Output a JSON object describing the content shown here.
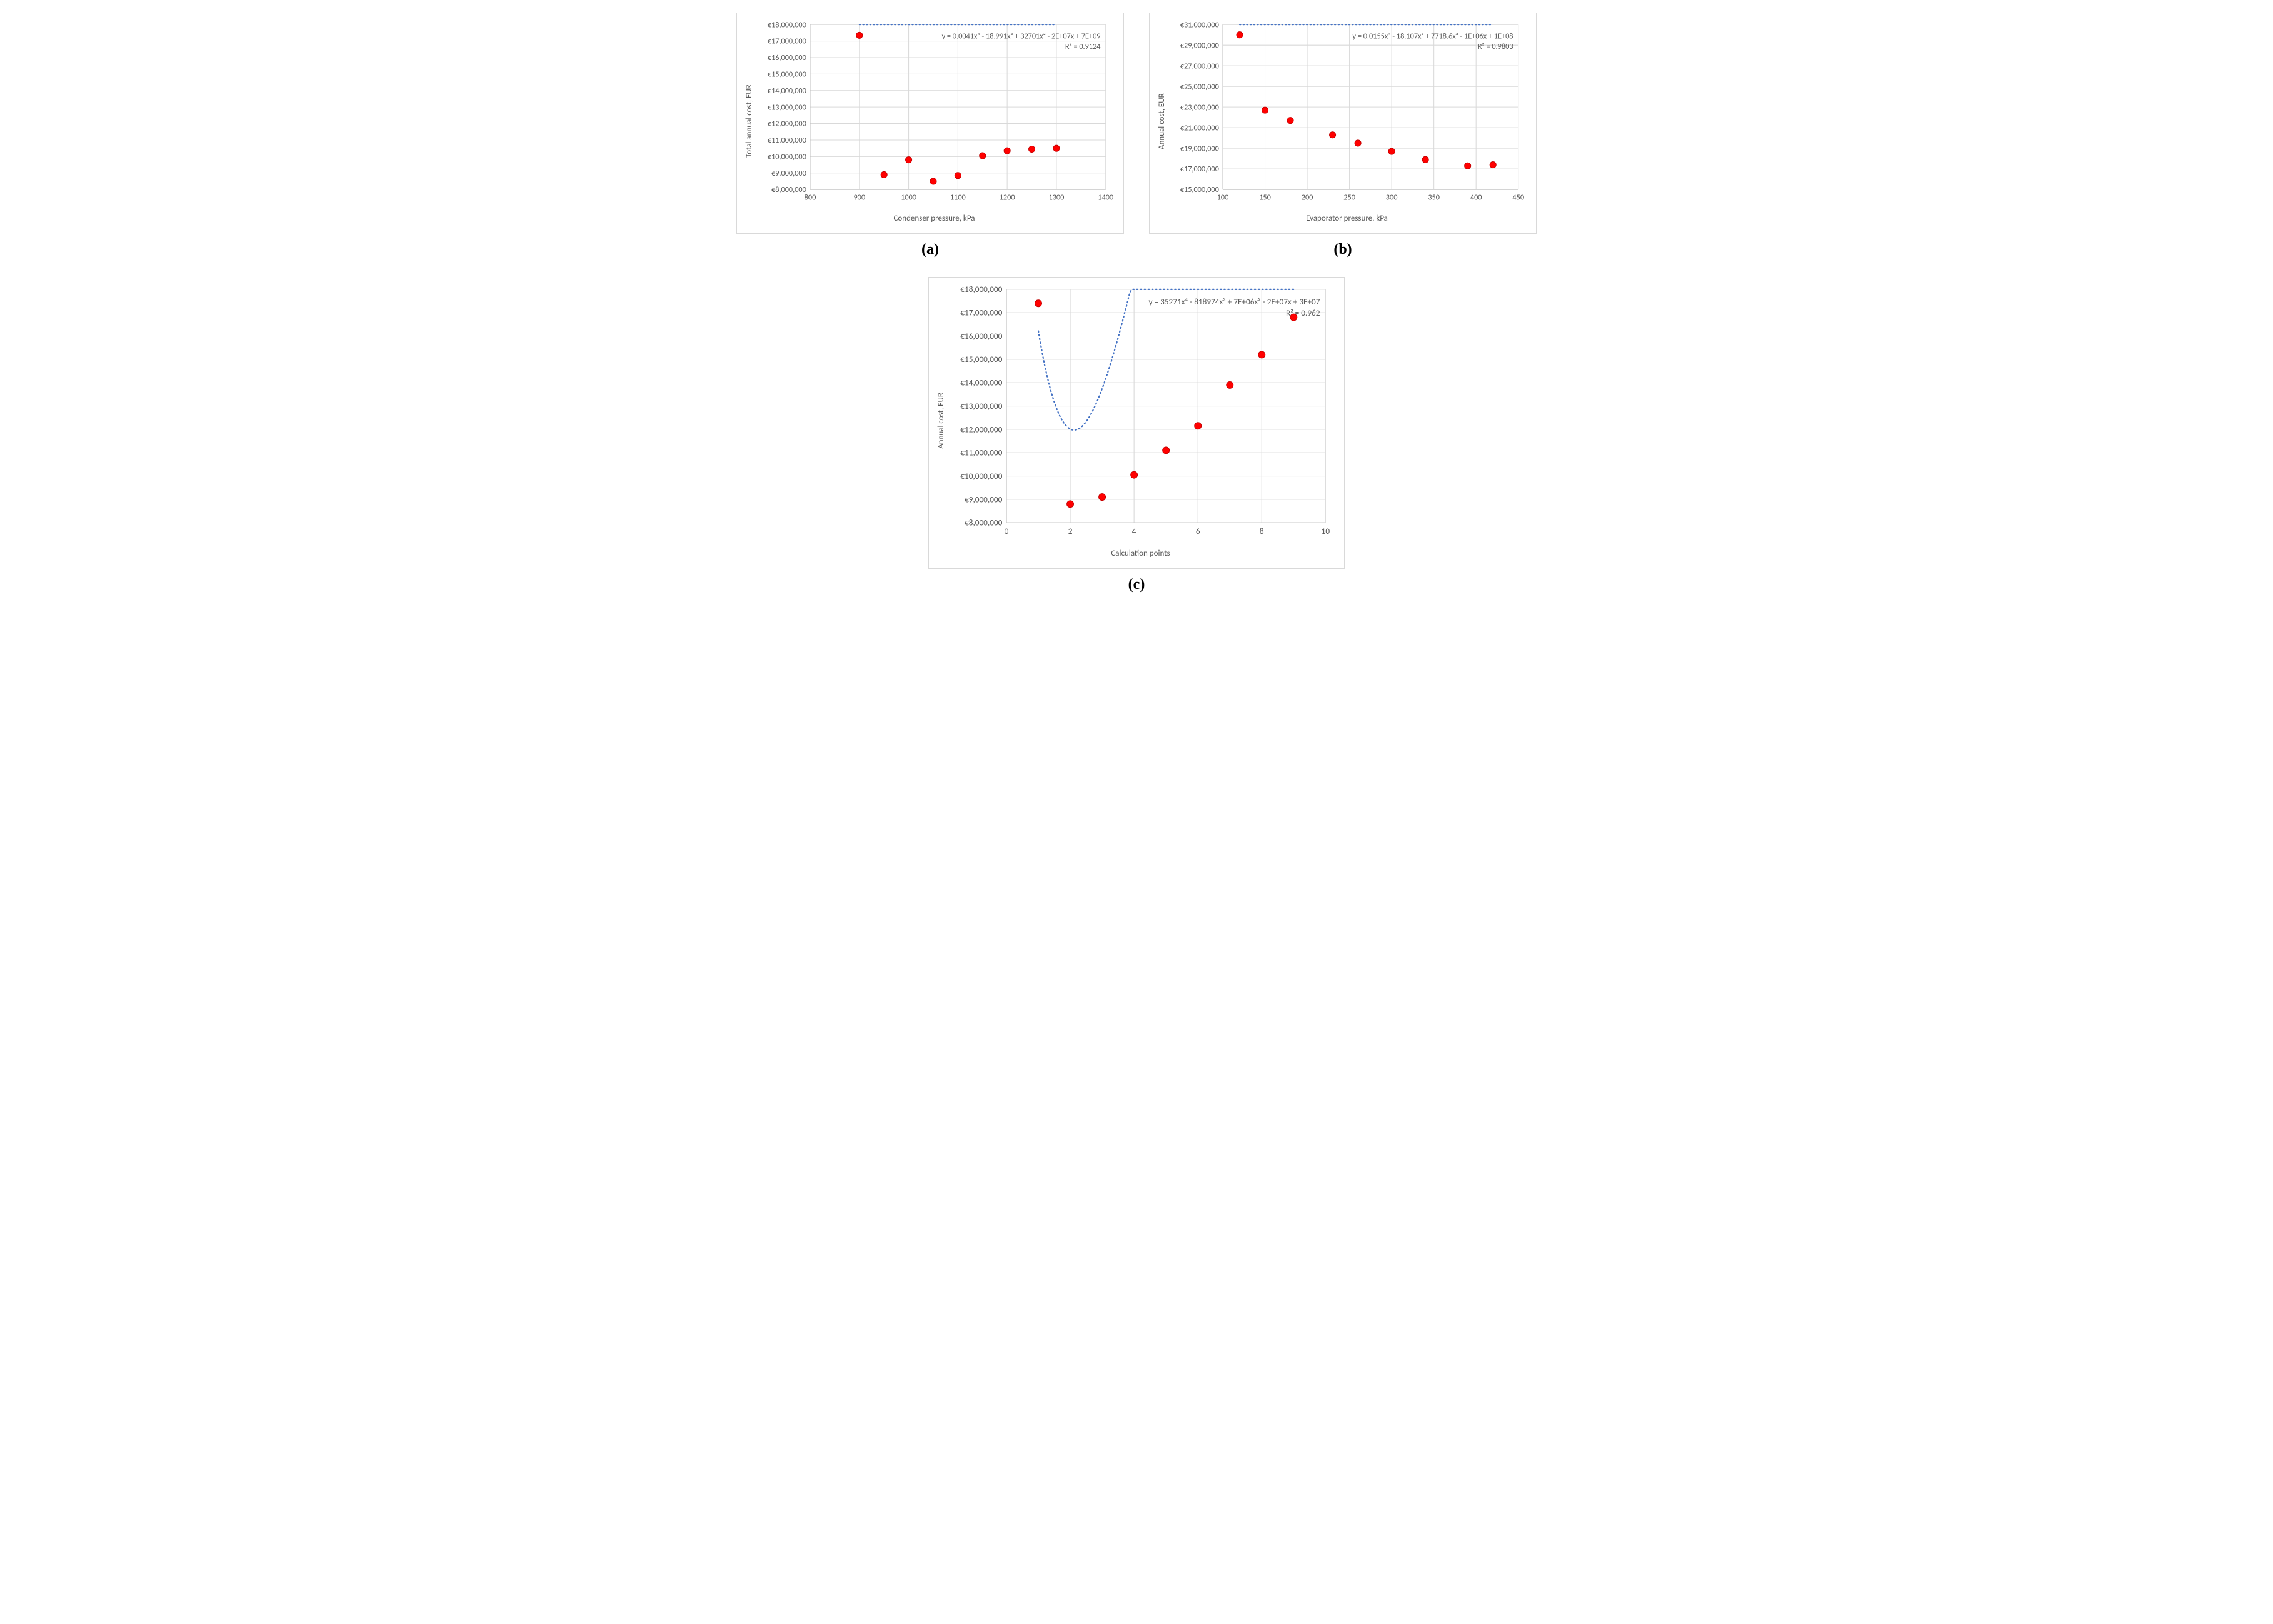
{
  "chart_a": {
    "type": "scatter-with-trend",
    "ylabel": "Total annual cost, EUR",
    "xlabel": "Condenser pressure, kPa",
    "subcaption": "(a)",
    "eq_line1": "y = 0.0041x⁴ - 18.991x³ + 32701x² - 2E+07x + 7E+09",
    "eq_line2": "R² = 0.9124",
    "xlim": [
      800,
      1400
    ],
    "ylim": [
      8000000,
      18000000
    ],
    "xtick_step": 100,
    "ytick_step": 1000000,
    "ytick_prefix": "€",
    "bg": "#ffffff",
    "grid_color": "#d9d9d9",
    "axis_color": "#bfbfbf",
    "marker_color": "#ff0000",
    "marker_outline": "#c00000",
    "marker_radius": 5,
    "trend_color": "#4472c4",
    "trend_dash": "1.5 4",
    "font_color": "#595959",
    "data": [
      {
        "x": 900,
        "y": 17350000
      },
      {
        "x": 950,
        "y": 8900000
      },
      {
        "x": 1000,
        "y": 9800000
      },
      {
        "x": 1050,
        "y": 8500000
      },
      {
        "x": 1100,
        "y": 8850000
      },
      {
        "x": 1150,
        "y": 10050000
      },
      {
        "x": 1200,
        "y": 10350000
      },
      {
        "x": 1250,
        "y": 10450000
      },
      {
        "x": 1300,
        "y": 10500000
      }
    ],
    "trend_poly": {
      "a": 0.0041,
      "b": -18.991,
      "c": 32701,
      "d": -20000000,
      "e": 7000000000
    },
    "trend_domain": [
      900,
      1300
    ]
  },
  "chart_b": {
    "type": "scatter-with-trend",
    "ylabel": "Annual cost, EUR",
    "xlabel": "Evaporator pressure, kPa",
    "subcaption": "(b)",
    "eq_line1": "y = 0.0155x⁴ - 18.107x³ + 7718.6x² - 1E+06x + 1E+08",
    "eq_line2": "R² = 0.9803",
    "xlim": [
      100,
      450
    ],
    "ylim": [
      15000000,
      31000000
    ],
    "xtick_step": 50,
    "ytick_step": 2000000,
    "ytick_prefix": "€",
    "bg": "#ffffff",
    "grid_color": "#d9d9d9",
    "axis_color": "#bfbfbf",
    "marker_color": "#ff0000",
    "marker_outline": "#c00000",
    "marker_radius": 5,
    "trend_color": "#4472c4",
    "trend_dash": "1.5 4",
    "font_color": "#595959",
    "data": [
      {
        "x": 120,
        "y": 30000000
      },
      {
        "x": 150,
        "y": 22700000
      },
      {
        "x": 180,
        "y": 21700000
      },
      {
        "x": 230,
        "y": 20300000
      },
      {
        "x": 260,
        "y": 19500000
      },
      {
        "x": 300,
        "y": 18700000
      },
      {
        "x": 340,
        "y": 17900000
      },
      {
        "x": 390,
        "y": 17300000
      },
      {
        "x": 420,
        "y": 17400000
      }
    ],
    "trend_poly": {
      "a": 0.0155,
      "b": -18.107,
      "c": 7718.6,
      "d": -1000000,
      "e": 100000000
    },
    "trend_domain": [
      120,
      420
    ]
  },
  "chart_c": {
    "type": "scatter-with-trend",
    "ylabel": "Annual cost, EUR",
    "xlabel": "Calculation points",
    "subcaption": "(c)",
    "eq_line1": "y = 35271x⁴ - 818974x³ + 7E+06x² - 2E+07x + 3E+07",
    "eq_line2": "R² = 0.962",
    "xlim": [
      0,
      10
    ],
    "ylim": [
      8000000,
      18000000
    ],
    "xtick_step": 2,
    "ytick_step": 1000000,
    "ytick_prefix": "€",
    "bg": "#ffffff",
    "grid_color": "#d9d9d9",
    "axis_color": "#bfbfbf",
    "marker_color": "#ff0000",
    "marker_outline": "#c00000",
    "marker_radius": 5,
    "trend_color": "#4472c4",
    "trend_dash": "1.5 4",
    "font_color": "#595959",
    "data": [
      {
        "x": 1,
        "y": 17400000
      },
      {
        "x": 2,
        "y": 8800000
      },
      {
        "x": 3,
        "y": 9100000
      },
      {
        "x": 4,
        "y": 10050000
      },
      {
        "x": 5,
        "y": 11100000
      },
      {
        "x": 6,
        "y": 12150000
      },
      {
        "x": 7,
        "y": 13900000
      },
      {
        "x": 8,
        "y": 15200000
      },
      {
        "x": 9,
        "y": 16800000
      }
    ],
    "trend_poly": {
      "a": 35271,
      "b": -818974,
      "c": 7000000,
      "d": -20000000,
      "e": 30000000
    },
    "trend_domain": [
      1,
      9
    ]
  }
}
